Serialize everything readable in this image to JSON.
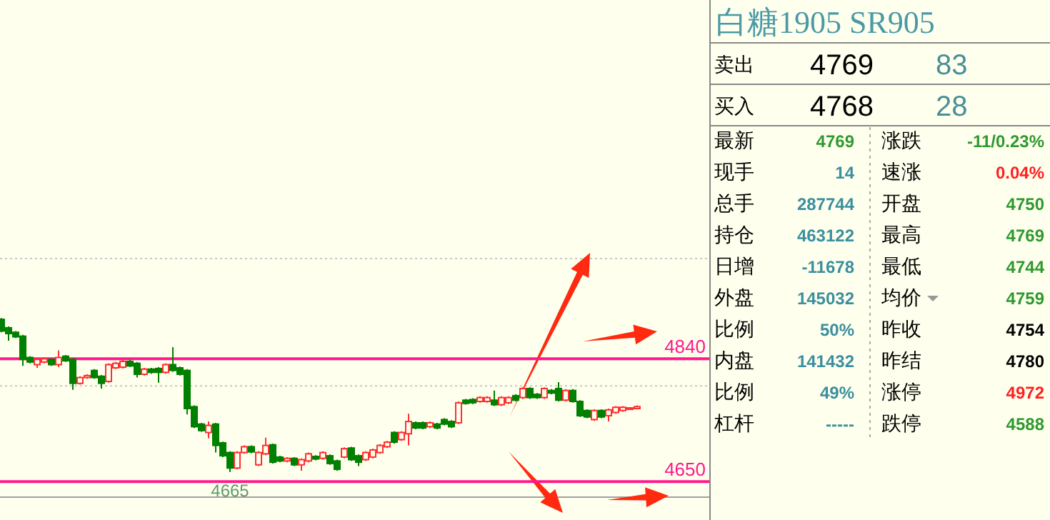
{
  "chart_data": [
    {
      "type": "candlestick",
      "categories": [
        null,
        null,
        null,
        null,
        null,
        null,
        null,
        null,
        null,
        null,
        null,
        null,
        null,
        null,
        null,
        null,
        null,
        null,
        null,
        null,
        null,
        null,
        null,
        null,
        null,
        null,
        null,
        null,
        null,
        null,
        null,
        null,
        null,
        null,
        null,
        null,
        null,
        null,
        null,
        null,
        null,
        null,
        null,
        null,
        null,
        null,
        null,
        null,
        null,
        null,
        null,
        null,
        null,
        null,
        null,
        null,
        null,
        null,
        null,
        null,
        null,
        null,
        null,
        null,
        null,
        null,
        null,
        null,
        null,
        null,
        null,
        null,
        null,
        null,
        null,
        null,
        null,
        null,
        null,
        null,
        null,
        null,
        null,
        null,
        null,
        null,
        null,
        null,
        null,
        null
      ],
      "ohlc": [
        [
          4901,
          4903,
          4881,
          4883
        ],
        [
          4888,
          4890,
          4868,
          4879
        ],
        [
          4881,
          4883,
          4872,
          4874
        ],
        [
          4875,
          4877,
          4829,
          4839
        ],
        [
          4842,
          4844,
          4833,
          4835
        ],
        [
          4831,
          4841,
          4826,
          4839
        ],
        [
          4835,
          4842,
          4833,
          4840
        ],
        [
          4839,
          4841,
          4829,
          4831
        ],
        [
          4831,
          4853,
          4827,
          4842
        ],
        [
          4844,
          4846,
          4835,
          4837
        ],
        [
          4839,
          4841,
          4792,
          4802
        ],
        [
          4802,
          4813,
          4800,
          4811
        ],
        [
          4811,
          4816,
          4809,
          4814
        ],
        [
          4822,
          4824,
          4809,
          4811
        ],
        [
          4813,
          4815,
          4794,
          4802
        ],
        [
          4805,
          4833,
          4803,
          4831
        ],
        [
          4826,
          4835,
          4824,
          4833
        ],
        [
          4827,
          4838,
          4825,
          4836
        ],
        [
          4836,
          4838,
          4827,
          4829
        ],
        [
          4833,
          4835,
          4811,
          4816
        ],
        [
          4816,
          4826,
          4814,
          4824
        ],
        [
          4824,
          4826,
          4817,
          4819
        ],
        [
          4825,
          4827,
          4803,
          4819
        ],
        [
          4819,
          4833,
          4817,
          4831
        ],
        [
          4831,
          4858,
          4820,
          4822
        ],
        [
          4826,
          4828,
          4814,
          4816
        ],
        [
          4822,
          4824,
          4754,
          4763
        ],
        [
          4766,
          4768,
          4733,
          4735
        ],
        [
          4739,
          4741,
          4727,
          4729
        ],
        [
          4726,
          4743,
          4717,
          4737
        ],
        [
          4739,
          4741,
          4695,
          4706
        ],
        [
          4710,
          4712,
          4688,
          4690
        ],
        [
          4695,
          4697,
          4665,
          4671
        ],
        [
          4671,
          4697,
          4669,
          4695
        ],
        [
          4695,
          4706,
          4693,
          4704
        ],
        [
          4704,
          4706,
          4694,
          4696
        ],
        [
          4676,
          4697,
          4674,
          4695
        ],
        [
          4693,
          4718,
          4691,
          4706
        ],
        [
          4707,
          4709,
          4678,
          4680
        ],
        [
          4688,
          4690,
          4680,
          4682
        ],
        [
          4682,
          4688,
          4680,
          4686
        ],
        [
          4686,
          4688,
          4674,
          4676
        ],
        [
          4676,
          4686,
          4667,
          4684
        ],
        [
          4682,
          4695,
          4680,
          4693
        ],
        [
          4689,
          4691,
          4683,
          4685
        ],
        [
          4686,
          4697,
          4684,
          4695
        ],
        [
          4690,
          4692,
          4676,
          4678
        ],
        [
          4682,
          4684,
          4667,
          4669
        ],
        [
          4688,
          4703,
          4686,
          4701
        ],
        [
          4702,
          4704,
          4682,
          4684
        ],
        [
          4690,
          4692,
          4674,
          4680
        ],
        [
          4684,
          4697,
          4682,
          4695
        ],
        [
          4688,
          4701,
          4686,
          4699
        ],
        [
          4695,
          4708,
          4693,
          4706
        ],
        [
          4704,
          4713,
          4702,
          4711
        ],
        [
          4726,
          4728,
          4709,
          4711
        ],
        [
          4715,
          4728,
          4713,
          4726
        ],
        [
          4724,
          4755,
          4706,
          4743
        ],
        [
          4741,
          4743,
          4731,
          4733
        ],
        [
          4741,
          4743,
          4731,
          4733
        ],
        [
          4735,
          4743,
          4733,
          4741
        ],
        [
          4739,
          4741,
          4731,
          4733
        ],
        [
          4746,
          4748,
          4737,
          4739
        ],
        [
          4743,
          4745,
          4733,
          4735
        ],
        [
          4741,
          4774,
          4739,
          4772
        ],
        [
          4776,
          4778,
          4769,
          4771
        ],
        [
          4777,
          4779,
          4770,
          4772
        ],
        [
          4774,
          4782,
          4772,
          4780
        ],
        [
          4774,
          4782,
          4772,
          4780
        ],
        [
          4776,
          4791,
          4767,
          4769
        ],
        [
          4769,
          4782,
          4767,
          4780
        ],
        [
          4772,
          4782,
          4770,
          4780
        ],
        [
          4783,
          4785,
          4774,
          4776
        ],
        [
          4780,
          4796,
          4778,
          4794
        ],
        [
          4794,
          4796,
          4778,
          4780
        ],
        [
          4785,
          4787,
          4778,
          4780
        ],
        [
          4780,
          4796,
          4778,
          4794
        ],
        [
          4791,
          4793,
          4785,
          4787
        ],
        [
          4794,
          4804,
          4774,
          4776
        ],
        [
          4776,
          4793,
          4774,
          4791
        ],
        [
          4791,
          4793,
          4772,
          4774
        ],
        [
          4774,
          4776,
          4750,
          4752
        ],
        [
          4760,
          4762,
          4748,
          4750
        ],
        [
          4746,
          4762,
          4744,
          4760
        ],
        [
          4760,
          4762,
          4748,
          4750
        ],
        [
          4752,
          4763,
          4743,
          4761
        ],
        [
          4757,
          4767,
          4755,
          4765
        ],
        [
          4760,
          4767,
          4758,
          4765
        ],
        [
          4762,
          4765,
          4761,
          4764
        ],
        [
          4763,
          4768,
          4762,
          4766
        ]
      ],
      "ylim": [
        4626,
        5395
      ],
      "yticks": [
        {
          "value": 4995,
          "label": null
        },
        {
          "value": 4798,
          "label": null
        }
      ],
      "grid": "y",
      "ref_lines": [
        {
          "axis": "y",
          "value": 4840,
          "label": "4840",
          "color": "#ff1a8c"
        },
        {
          "axis": "y",
          "value": 4650,
          "label": "4650",
          "color": "#ff1a8c"
        }
      ],
      "annotations": [
        {
          "text": "4665",
          "y": 4665
        }
      ]
    },
    {
      "type": "other",
      "title": "白糖1905 SR905",
      "annotations": [
        "卖出",
        "4769",
        "83",
        "买入",
        "4768",
        "28",
        "最新",
        "4769",
        "涨跌",
        "-11/0.23%",
        "现手",
        "14",
        "速涨",
        "0.04%",
        "总手",
        "287744",
        "开盘",
        "4750",
        "持仓",
        "463122",
        "最高",
        "4769",
        "日增",
        "-11678",
        "最低",
        "4744",
        "外盘",
        "145032",
        "均价",
        "4759",
        "比例",
        "50%",
        "昨收",
        "4754",
        "内盘",
        "141432",
        "昨结",
        "4780",
        "比例",
        "49%",
        "涨停",
        "4972",
        "杠杆",
        "-----",
        "跌停",
        "4588"
      ]
    }
  ]
}
